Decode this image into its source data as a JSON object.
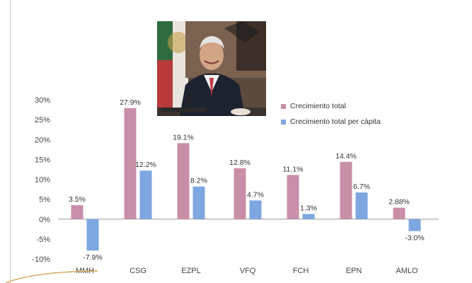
{
  "chart_data": {
    "type": "bar",
    "categories": [
      "MMH",
      "CSG",
      "EZPL",
      "VFQ",
      "FCH",
      "EPN",
      "AMLO"
    ],
    "series": [
      {
        "name": "Crecimiento total",
        "color": "#c98fa8",
        "values": [
          3.5,
          27.9,
          19.1,
          12.8,
          11.1,
          14.4,
          2.88
        ],
        "labels": [
          "3.5%",
          "27.9%",
          "19.1%",
          "12.8%",
          "11.1%",
          "14.4%",
          "2.88%"
        ]
      },
      {
        "name": "Crecimiento total per cápita",
        "color": "#7ea6e0",
        "values": [
          -7.9,
          12.2,
          8.2,
          4.7,
          1.3,
          6.7,
          -3.0
        ],
        "labels": [
          "-7.9%",
          "12.2%",
          "8.2%",
          "4.7%",
          "1.3%",
          "6.7%",
          "-3.0%"
        ]
      }
    ],
    "ylim": [
      -10,
      30
    ],
    "yticks": [
      "30%",
      "25%",
      "20%",
      "15%",
      "10%",
      "5%",
      "0%",
      "-5%",
      "-10%"
    ],
    "ytick_values": [
      30,
      25,
      20,
      15,
      10,
      5,
      0,
      -5,
      -10
    ],
    "title": "",
    "xlabel": "",
    "ylabel": "",
    "grid": false,
    "legend_position": "right"
  },
  "legend": {
    "items": [
      {
        "label": "Crecimiento total",
        "color": "#c98fa8"
      },
      {
        "label": "Crecimiento total per cápita",
        "color": "#7ea6e0"
      }
    ]
  },
  "photo": {
    "icon": "portrait-photo"
  },
  "colors": {
    "axis_text": "#444444",
    "label_text": "#333333",
    "axis_line": "#999999"
  }
}
